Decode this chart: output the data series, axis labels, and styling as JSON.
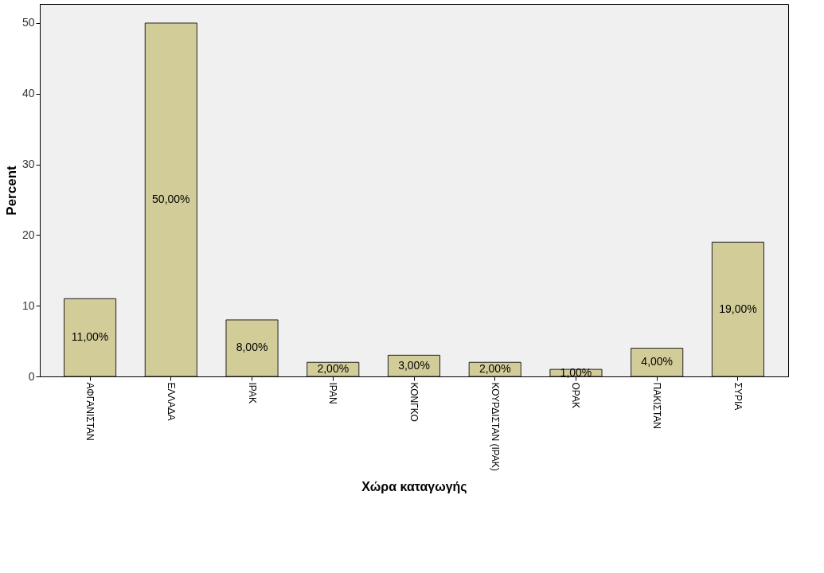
{
  "chart_data": {
    "type": "bar",
    "xlabel": "Χώρα καταγωγής",
    "ylabel": "Percent",
    "categories": [
      "ΑΦΓΑΝΙΣΤΑΝ",
      "ΕΛΛΑΔΑ",
      "ΙΡΑΚ",
      "ΙΡΑΝ",
      "ΚΟΝΓΚΟ",
      "ΚΟΥΡΔΙΣΤΑΝ (ΙΡΑΚ)",
      "ΟΡΑΚ",
      "ΠΑΚΙΣΤΑΝ",
      "ΣΥΡΙΑ"
    ],
    "values": [
      11,
      50,
      8,
      2,
      3,
      2,
      1,
      4,
      19
    ],
    "value_labels": [
      "11,00%",
      "50,00%",
      "8,00%",
      "2,00%",
      "3,00%",
      "2,00%",
      "1,00%",
      "4,00%",
      "19,00%"
    ],
    "color": "#d2cc99",
    "ylim": [
      0,
      52.7
    ],
    "yticks": [
      0,
      10,
      20,
      30,
      40,
      50
    ],
    "grid": false
  }
}
